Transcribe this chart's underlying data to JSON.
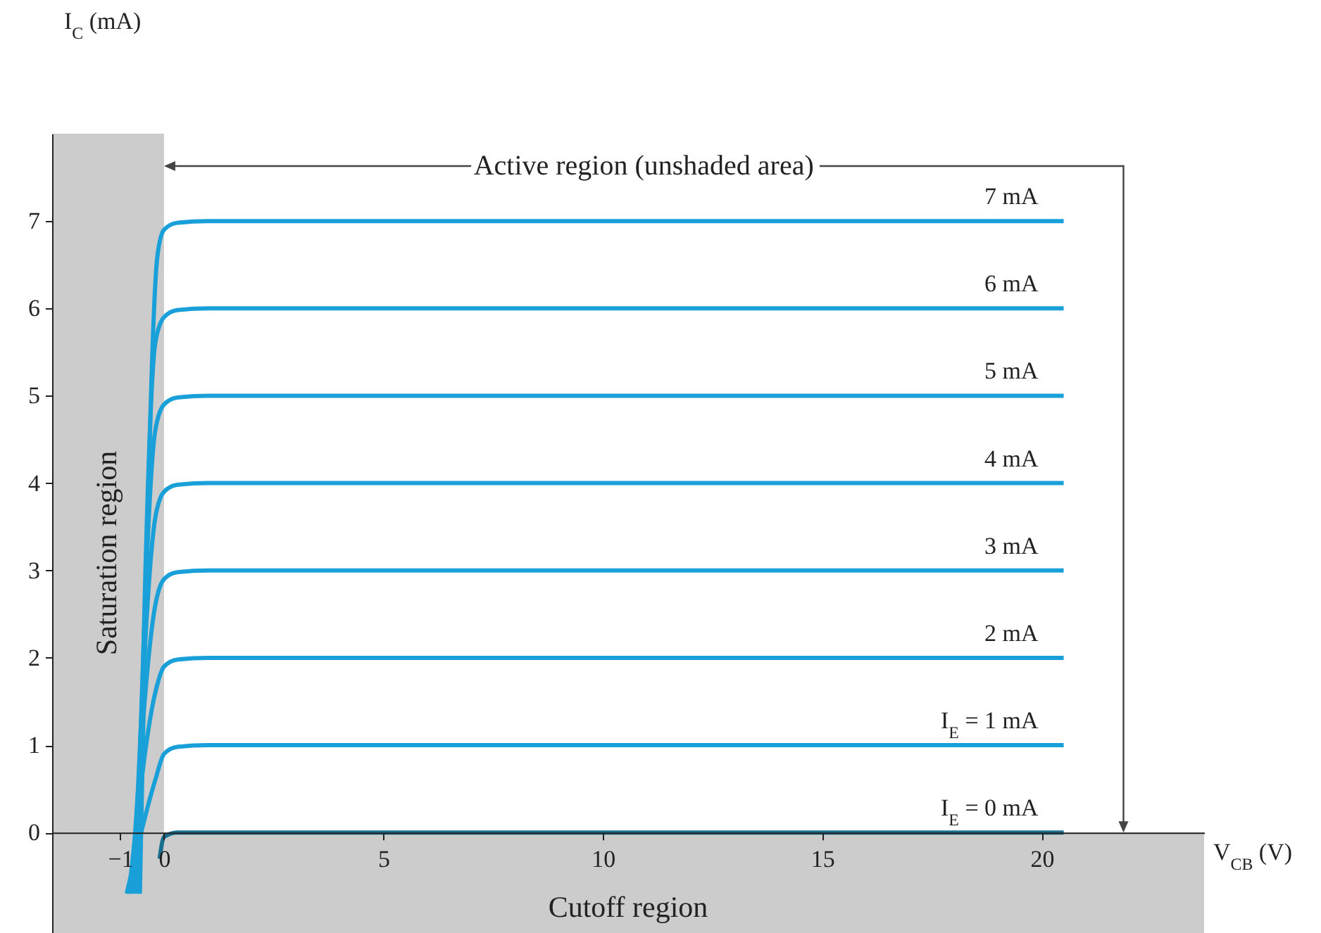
{
  "chart_data": {
    "type": "line",
    "xlabel": "V$_{CB}$ (V)",
    "ylabel": "I$_{C}$ (mA)",
    "xlim": [
      -2.55,
      23.7
    ],
    "ylim": [
      -1.15,
      8
    ],
    "xticks": [
      -1,
      0,
      5,
      10,
      15,
      20
    ],
    "yticks": [
      0,
      1,
      2,
      3,
      4,
      5,
      6,
      7
    ],
    "grid": false,
    "marker": "none",
    "line_style": "solid",
    "series": [
      {
        "name": "7  mA",
        "color": "#1aa0d8",
        "x": [
          -0.55,
          -0.15,
          0,
          0.3,
          1,
          20.5
        ],
        "values": [
          -0.7,
          6.6,
          6.9,
          6.98,
          7,
          7
        ]
      },
      {
        "name": "6  mA",
        "color": "#1aa0d8",
        "x": [
          -0.6,
          -0.2,
          0,
          0.3,
          1,
          20.5
        ],
        "values": [
          -0.7,
          5.6,
          5.9,
          5.98,
          6,
          6
        ]
      },
      {
        "name": "5  mA",
        "color": "#1aa0d8",
        "x": [
          -0.65,
          -0.2,
          0,
          0.3,
          1,
          20.5
        ],
        "values": [
          -0.7,
          4.6,
          4.9,
          4.98,
          5,
          5
        ]
      },
      {
        "name": "4  mA",
        "color": "#1aa0d8",
        "x": [
          -0.7,
          -0.2,
          0,
          0.3,
          1,
          20.5
        ],
        "values": [
          -0.7,
          3.6,
          3.9,
          3.98,
          4,
          4
        ]
      },
      {
        "name": "3  mA",
        "color": "#1aa0d8",
        "x": [
          -0.75,
          -0.2,
          0,
          0.3,
          1,
          20.5
        ],
        "values": [
          -0.7,
          2.6,
          2.9,
          2.98,
          3,
          3
        ]
      },
      {
        "name": "2  mA",
        "color": "#1aa0d8",
        "x": [
          -0.8,
          -0.2,
          0,
          0.3,
          1,
          20.5
        ],
        "values": [
          -0.7,
          1.6,
          1.9,
          1.98,
          2,
          2
        ]
      },
      {
        "name": "I$_{E}$ = 1 mA",
        "color": "#1aa0d8",
        "x": [
          -0.85,
          -0.2,
          0,
          0.3,
          1,
          20.5
        ],
        "values": [
          -0.7,
          0.6,
          0.9,
          0.98,
          1,
          1
        ]
      },
      {
        "name": "I$_{E}$ = 0 mA",
        "color": "#1a6f90",
        "x": [
          -0.1,
          0,
          0.3,
          20.5
        ],
        "values": [
          -0.3,
          -0.05,
          0,
          0
        ]
      }
    ],
    "bands": [
      {
        "axis": "x",
        "from": -2.55,
        "to": 0,
        "label": "Saturation region",
        "color": "#cccccc"
      },
      {
        "axis": "y",
        "from": -1.15,
        "to": 0,
        "label": "Cutoff region",
        "color": "#cccccc"
      }
    ],
    "annotations": [
      "Active region (unshaded area)"
    ]
  }
}
